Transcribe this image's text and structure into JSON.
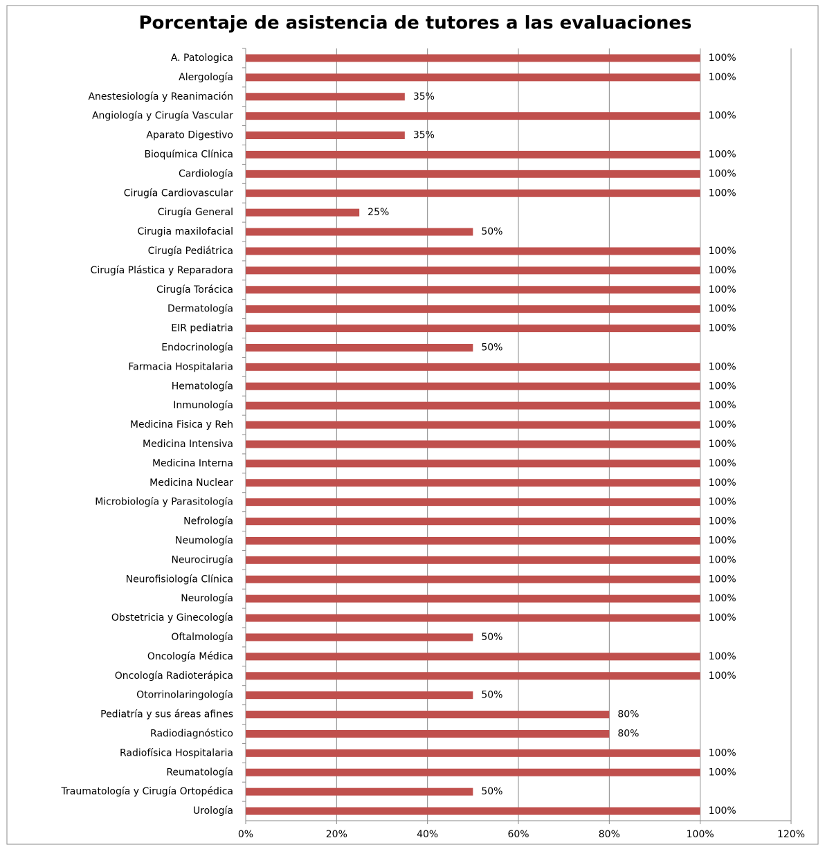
{
  "chart_data": {
    "type": "barh",
    "title": "Porcentaje de asistencia de tutores a las evaluaciones",
    "categories": [
      "A. Patologica",
      "Alergología",
      "Anestesiología y Reanimación",
      "Angiología y Cirugía Vascular",
      "Aparato Digestivo",
      "Bioquímica Clínica",
      "Cardiología",
      "Cirugía Cardiovascular",
      "Cirugía General",
      "Cirugia maxilofacial",
      "Cirugía Pediátrica",
      "Cirugía Plástica y Reparadora",
      "Cirugía Torácica",
      "Dermatología",
      "EIR pediatria",
      "Endocrinología",
      "Farmacia Hospitalaria",
      "Hematología",
      "Inmunología",
      "Medicina Fisica y Reh",
      "Medicina Intensiva",
      "Medicina Interna",
      "Medicina Nuclear",
      "Microbiología y Parasitología",
      "Nefrología",
      "Neumología",
      "Neurocirugía",
      "Neurofisiología Clínica",
      "Neurología",
      "Obstetricia y Ginecología",
      "Oftalmología",
      "Oncología Médica",
      "Oncología Radioterápica",
      "Otorrinolaringología",
      "Pediatría y sus áreas afines",
      "Radiodiagnóstico",
      "Radiofísica Hospitalaria",
      "Reumatología",
      "Traumatología y Cirugía Ortopédica",
      "Urología"
    ],
    "values": [
      100,
      100,
      35,
      100,
      35,
      100,
      100,
      100,
      25,
      50,
      100,
      100,
      100,
      100,
      100,
      50,
      100,
      100,
      100,
      100,
      100,
      100,
      100,
      100,
      100,
      100,
      100,
      100,
      100,
      100,
      50,
      100,
      100,
      50,
      80,
      80,
      100,
      100,
      50,
      100
    ],
    "value_labels": [
      "100%",
      "100%",
      "35%",
      "100%",
      "35%",
      "100%",
      "100%",
      "100%",
      "25%",
      "50%",
      "100%",
      "100%",
      "100%",
      "100%",
      "100%",
      "50%",
      "100%",
      "100%",
      "100%",
      "100%",
      "100%",
      "100%",
      "100%",
      "100%",
      "100%",
      "100%",
      "100%",
      "100%",
      "100%",
      "100%",
      "50%",
      "100%",
      "100%",
      "50%",
      "80%",
      "80%",
      "100%",
      "100%",
      "50%",
      "100%"
    ],
    "color": "#c0504d",
    "xlim": [
      0,
      120
    ],
    "xticks": [
      {
        "value": 0,
        "label": "0%"
      },
      {
        "value": 20,
        "label": "20%"
      },
      {
        "value": 40,
        "label": "40%"
      },
      {
        "value": 60,
        "label": "60%"
      },
      {
        "value": 80,
        "label": "80%"
      },
      {
        "value": 100,
        "label": "100%"
      },
      {
        "value": 120,
        "label": "120%"
      }
    ],
    "grid": true
  }
}
